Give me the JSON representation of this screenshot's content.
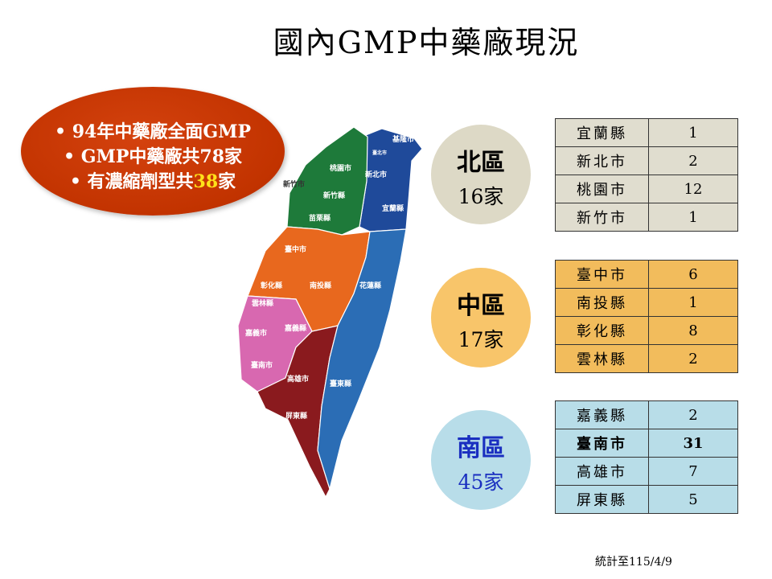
{
  "title": "國內GMP中藥廠現況",
  "summary": {
    "line1": "• 94年中藥廠全面GMP",
    "line2": "• GMP中藥廠共78家",
    "line3_pre": "• 有濃縮劑型共",
    "line3_num": "38",
    "line3_post": "家"
  },
  "map_labels": {
    "keelung": "基隆市",
    "taipei": "臺北市",
    "newtaipei": "新北市",
    "yilan": "宜蘭縣",
    "taoyuan": "桃園市",
    "hsinchu_city": "新竹市",
    "hsinchu_county": "新竹縣",
    "miaoli": "苗栗縣",
    "taichung": "臺中市",
    "changhua": "彰化縣",
    "nantou": "南投縣",
    "hualien": "花蓮縣",
    "yunlin": "雲林縣",
    "chiayi_city": "嘉義市",
    "chiayi_county": "嘉義縣",
    "tainan": "臺南市",
    "kaohsiung": "高雄市",
    "taitung": "臺東縣",
    "pingtung": "屏東縣"
  },
  "colors": {
    "north": "#1f4a9a",
    "north_green": "#1e7a3a",
    "central": "#e8681e",
    "south_pink": "#d868b0",
    "south_red": "#8a1a1e",
    "east": "#2b6db5"
  },
  "regions": [
    {
      "name": "北區",
      "count": "16家",
      "rows": [
        {
          "county": "宜蘭縣",
          "value": "1"
        },
        {
          "county": "新北市",
          "value": "2"
        },
        {
          "county": "桃園市",
          "value": "12"
        },
        {
          "county": "新竹市",
          "value": "1"
        }
      ]
    },
    {
      "name": "中區",
      "count": "17家",
      "rows": [
        {
          "county": "臺中市",
          "value": "6"
        },
        {
          "county": "南投縣",
          "value": "1"
        },
        {
          "county": "彰化縣",
          "value": "8"
        },
        {
          "county": "雲林縣",
          "value": "2"
        }
      ]
    },
    {
      "name": "南區",
      "count": "45家",
      "rows": [
        {
          "county": "嘉義縣",
          "value": "2"
        },
        {
          "county": "臺南市",
          "value": "31",
          "bold": true
        },
        {
          "county": "高雄市",
          "value": "7"
        },
        {
          "county": "屏東縣",
          "value": "5"
        }
      ]
    }
  ],
  "footer": "統計至115/4/9"
}
